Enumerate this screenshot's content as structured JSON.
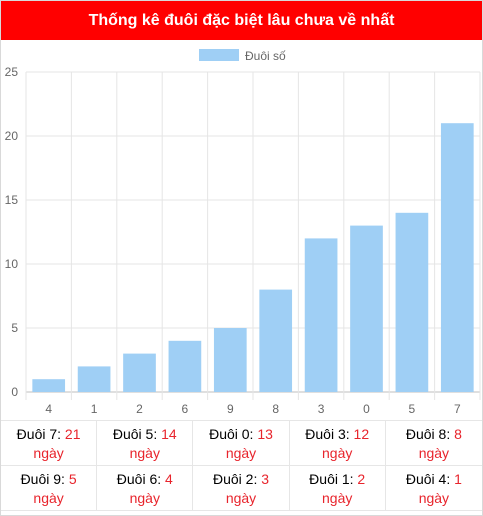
{
  "header": {
    "title": "Thống kê đuôi đặc biệt lâu chưa về nhất"
  },
  "chart_data": {
    "type": "bar",
    "categories": [
      "4",
      "1",
      "2",
      "6",
      "9",
      "8",
      "3",
      "0",
      "5",
      "7"
    ],
    "series": [
      {
        "name": "Đuôi số",
        "values": [
          1,
          2,
          3,
          4,
          5,
          8,
          12,
          13,
          14,
          21
        ],
        "color": "#9fcff5"
      }
    ],
    "title": "",
    "xlabel": "",
    "ylabel": "",
    "ylim": [
      0,
      25
    ],
    "yticks": [
      "0",
      "5",
      "10",
      "15",
      "20",
      "25"
    ],
    "grid": true,
    "legend": "top-center"
  },
  "stats": [
    {
      "label": "Đuôi 7:",
      "value": "21",
      "unit": "ngày"
    },
    {
      "label": "Đuôi 5:",
      "value": "14",
      "unit": "ngày"
    },
    {
      "label": "Đuôi 0:",
      "value": "13",
      "unit": "ngày"
    },
    {
      "label": "Đuôi 3:",
      "value": "12",
      "unit": "ngày"
    },
    {
      "label": "Đuôi 8:",
      "value": "8",
      "unit": "ngày"
    },
    {
      "label": "Đuôi 9:",
      "value": "5",
      "unit": "ngày"
    },
    {
      "label": "Đuôi 6:",
      "value": "4",
      "unit": "ngày"
    },
    {
      "label": "Đuôi 2:",
      "value": "3",
      "unit": "ngày"
    },
    {
      "label": "Đuôi 1:",
      "value": "2",
      "unit": "ngày"
    },
    {
      "label": "Đuôi 4:",
      "value": "1",
      "unit": "ngày"
    }
  ],
  "colors": {
    "header_bg": "#ff0000",
    "value_text": "#e8242c",
    "bar": "#9fcff5"
  }
}
